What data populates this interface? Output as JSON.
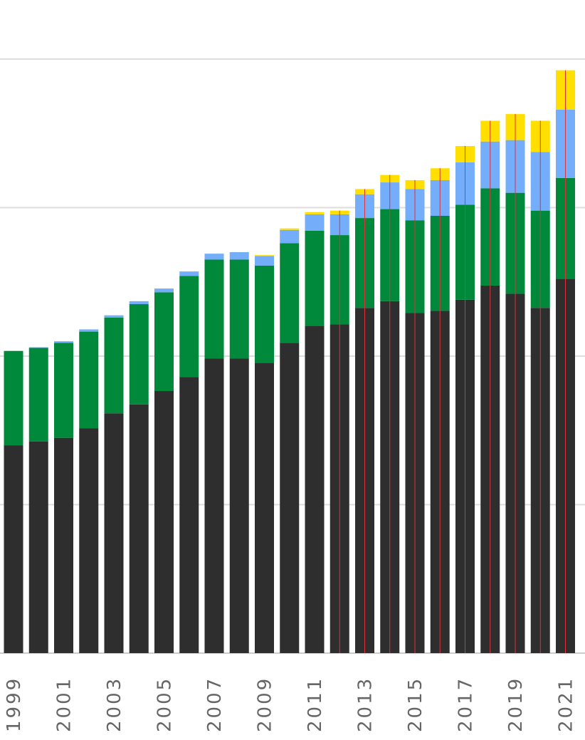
{
  "colors": {
    "background": "#ffffff",
    "gridline": "#dddddd",
    "baseline": "#cccccc",
    "tick_text": "#666666",
    "marker_line": "#e0303a"
  },
  "chart_data": {
    "type": "bar",
    "stacked": true,
    "title": "",
    "xlabel": "",
    "ylabel": "",
    "grid": true,
    "legend": "none",
    "ylim": [
      0,
      4000
    ],
    "y_gridlines": [
      0,
      1000,
      2000,
      3000,
      4000
    ],
    "x_tick_labels": [
      "1999",
      "2001",
      "2003",
      "2005",
      "2007",
      "2009",
      "2011",
      "2013",
      "2015",
      "2017",
      "2019",
      "2021"
    ],
    "categories": [
      "1999",
      "2000",
      "2001",
      "2002",
      "2003",
      "2004",
      "2005",
      "2006",
      "2007",
      "2008",
      "2009",
      "2010",
      "2011",
      "2012",
      "2013",
      "2014",
      "2015",
      "2016",
      "2017",
      "2018",
      "2019",
      "2020",
      "2021"
    ],
    "series": [
      {
        "color": "#2e2e2e",
        "values": [
          1400,
          1425,
          1450,
          1515,
          1615,
          1675,
          1765,
          1860,
          1985,
          1985,
          1955,
          2090,
          2205,
          2215,
          2325,
          2370,
          2290,
          2305,
          2380,
          2475,
          2420,
          2325,
          2520
        ]
      },
      {
        "color": "#00893a",
        "values": [
          635,
          630,
          640,
          650,
          645,
          675,
          665,
          680,
          665,
          665,
          655,
          670,
          640,
          600,
          605,
          620,
          625,
          640,
          640,
          655,
          680,
          655,
          680
        ]
      },
      {
        "color": "#74aefa",
        "values": [
          0,
          5,
          10,
          15,
          15,
          20,
          25,
          30,
          40,
          50,
          65,
          90,
          110,
          140,
          160,
          180,
          210,
          240,
          285,
          315,
          355,
          395,
          460
        ]
      },
      {
        "color": "#ffdf00",
        "values": [
          0,
          0,
          0,
          0,
          0,
          0,
          0,
          0,
          0,
          0,
          5,
          10,
          15,
          25,
          35,
          50,
          60,
          80,
          110,
          140,
          175,
          210,
          265
        ]
      }
    ],
    "marked_years": [
      "2012",
      "2013",
      "2014",
      "2015",
      "2016",
      "2017",
      "2018",
      "2019",
      "2020",
      "2021"
    ]
  }
}
